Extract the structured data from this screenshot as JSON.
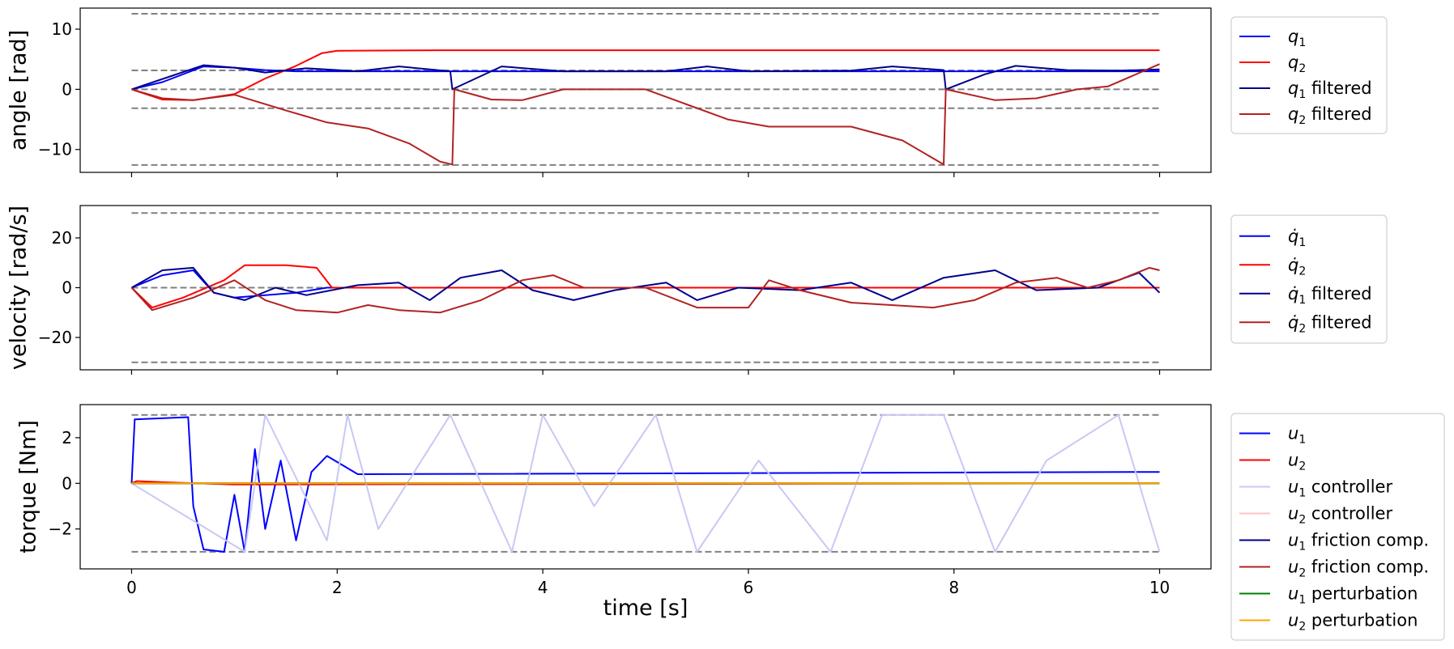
{
  "chart_data": [
    {
      "type": "line",
      "ylabel": "angle [rad]",
      "xlim": [
        -0.5,
        10.5
      ],
      "ylim": [
        -13.8,
        13.5
      ],
      "xticks": [
        "0",
        "2",
        "4",
        "6",
        "8",
        "10"
      ],
      "yticks": [
        10,
        0,
        -10
      ],
      "ytick_labels": [
        "10",
        "0",
        "−10"
      ],
      "limit_lines": [
        12.566,
        3.1416,
        0,
        -3.1416,
        -12.566
      ],
      "legend_position": "outside right",
      "series": [
        {
          "name": "q1",
          "legend_main": "q",
          "legend_sub": "1",
          "legend_suffix": "",
          "color": "#0000ff",
          "values": [
            [
              0,
              0
            ],
            [
              0.3,
              1.2
            ],
            [
              0.7,
              3.8
            ],
            [
              1,
              3.6
            ],
            [
              1.3,
              3.2
            ],
            [
              1.6,
              3.0
            ],
            [
              2,
              3.0
            ],
            [
              10,
              3.0
            ]
          ]
        },
        {
          "name": "q2",
          "legend_main": "q",
          "legend_sub": "2",
          "legend_suffix": "",
          "color": "#ff0000",
          "values": [
            [
              0,
              0
            ],
            [
              0.3,
              -1.7
            ],
            [
              0.6,
              -1.8
            ],
            [
              1,
              -0.8
            ],
            [
              1.3,
              1.8
            ],
            [
              1.6,
              3.9
            ],
            [
              1.85,
              6.0
            ],
            [
              2,
              6.4
            ],
            [
              3,
              6.5
            ],
            [
              10,
              6.5
            ]
          ]
        },
        {
          "name": "q1 filtered",
          "legend_main": "q",
          "legend_sub": "1",
          "legend_suffix": " filtered",
          "color": "#00008b",
          "values": [
            [
              0,
              0
            ],
            [
              0.35,
              2.0
            ],
            [
              0.7,
              4.0
            ],
            [
              1.0,
              3.6
            ],
            [
              1.3,
              2.8
            ],
            [
              1.7,
              3.5
            ],
            [
              2.2,
              3.0
            ],
            [
              2.6,
              3.8
            ],
            [
              3.1,
              3.0
            ],
            [
              3.12,
              0
            ],
            [
              3.6,
              3.8
            ],
            [
              4.2,
              3.0
            ],
            [
              5.2,
              3.0
            ],
            [
              5.6,
              3.8
            ],
            [
              6.0,
              3.0
            ],
            [
              7.0,
              3.1
            ],
            [
              7.4,
              3.8
            ],
            [
              7.9,
              3.2
            ],
            [
              7.92,
              0
            ],
            [
              8.3,
              2.5
            ],
            [
              8.6,
              3.9
            ],
            [
              9.1,
              3.2
            ],
            [
              9.6,
              3.1
            ],
            [
              10,
              3.3
            ]
          ]
        },
        {
          "name": "q2 filtered",
          "legend_main": "q",
          "legend_sub": "2",
          "legend_suffix": " filtered",
          "color": "#b22222",
          "values": [
            [
              0,
              0
            ],
            [
              0.3,
              -1.5
            ],
            [
              0.6,
              -1.8
            ],
            [
              1,
              -0.9
            ],
            [
              1.5,
              -3.5
            ],
            [
              1.9,
              -5.5
            ],
            [
              2.3,
              -6.5
            ],
            [
              2.7,
              -9
            ],
            [
              3,
              -12
            ],
            [
              3.12,
              -12.5
            ],
            [
              3.14,
              0
            ],
            [
              3.5,
              -1.7
            ],
            [
              3.8,
              -1.8
            ],
            [
              4.2,
              0
            ],
            [
              5,
              0
            ],
            [
              5.4,
              -2.5
            ],
            [
              5.8,
              -5
            ],
            [
              6.2,
              -6.2
            ],
            [
              7,
              -6.2
            ],
            [
              7.5,
              -8.5
            ],
            [
              7.9,
              -12.5
            ],
            [
              7.92,
              0
            ],
            [
              8.4,
              -1.8
            ],
            [
              8.8,
              -1.5
            ],
            [
              9.2,
              0
            ],
            [
              9.5,
              0.5
            ],
            [
              10,
              4.2
            ]
          ]
        }
      ]
    },
    {
      "type": "line",
      "ylabel": "velocity [rad/s]",
      "xlim": [
        -0.5,
        10.5
      ],
      "ylim": [
        -33,
        33
      ],
      "xticks": [
        "0",
        "2",
        "4",
        "6",
        "8",
        "10"
      ],
      "yticks": [
        20,
        0,
        -20
      ],
      "ytick_labels": [
        "20",
        "0",
        "−20"
      ],
      "limit_lines": [
        30,
        0,
        -30
      ],
      "legend_position": "outside right",
      "series": [
        {
          "name": "q1 dot",
          "legend_main": "q̇",
          "legend_sub": "1",
          "legend_suffix": "",
          "color": "#0000ff",
          "values": [
            [
              0,
              0
            ],
            [
              0.3,
              5
            ],
            [
              0.6,
              7
            ],
            [
              0.8,
              -2
            ],
            [
              1,
              -4
            ],
            [
              1.3,
              -3
            ],
            [
              1.6,
              -2
            ],
            [
              1.9,
              0
            ],
            [
              10,
              0
            ]
          ]
        },
        {
          "name": "q2 dot",
          "legend_main": "q̇",
          "legend_sub": "2",
          "legend_suffix": "",
          "color": "#ff0000",
          "values": [
            [
              0,
              0
            ],
            [
              0.2,
              -8
            ],
            [
              0.5,
              -4
            ],
            [
              0.9,
              3
            ],
            [
              1.1,
              9
            ],
            [
              1.5,
              9
            ],
            [
              1.8,
              8
            ],
            [
              1.95,
              0
            ],
            [
              10,
              0
            ]
          ]
        },
        {
          "name": "q1 dot filtered",
          "legend_main": "q̇",
          "legend_sub": "1",
          "legend_suffix": " filtered",
          "color": "#00008b",
          "values": [
            [
              0,
              0
            ],
            [
              0.3,
              7
            ],
            [
              0.6,
              8
            ],
            [
              0.8,
              -2
            ],
            [
              1.1,
              -5
            ],
            [
              1.4,
              0
            ],
            [
              1.7,
              -3
            ],
            [
              2.2,
              1
            ],
            [
              2.6,
              2
            ],
            [
              2.9,
              -5
            ],
            [
              3.2,
              4
            ],
            [
              3.6,
              7
            ],
            [
              3.9,
              -1
            ],
            [
              4.3,
              -5
            ],
            [
              4.7,
              -1
            ],
            [
              5.2,
              2
            ],
            [
              5.5,
              -5
            ],
            [
              5.9,
              0
            ],
            [
              6.5,
              -1
            ],
            [
              7.0,
              2
            ],
            [
              7.4,
              -5
            ],
            [
              7.9,
              4
            ],
            [
              8.4,
              7
            ],
            [
              8.8,
              -1
            ],
            [
              9.4,
              0
            ],
            [
              9.8,
              6
            ],
            [
              10,
              -2
            ]
          ]
        },
        {
          "name": "q2 dot filtered",
          "legend_main": "q̇",
          "legend_sub": "2",
          "legend_suffix": " filtered",
          "color": "#b22222",
          "values": [
            [
              0,
              0
            ],
            [
              0.2,
              -9
            ],
            [
              0.6,
              -4
            ],
            [
              1.0,
              3
            ],
            [
              1.3,
              -5
            ],
            [
              1.6,
              -9
            ],
            [
              2.0,
              -10
            ],
            [
              2.3,
              -7
            ],
            [
              2.6,
              -9
            ],
            [
              3.0,
              -10
            ],
            [
              3.4,
              -5
            ],
            [
              3.8,
              3
            ],
            [
              4.1,
              5
            ],
            [
              4.4,
              0
            ],
            [
              5.0,
              0
            ],
            [
              5.5,
              -8
            ],
            [
              6.0,
              -8
            ],
            [
              6.2,
              3
            ],
            [
              6.5,
              -1
            ],
            [
              7.0,
              -6
            ],
            [
              7.8,
              -8
            ],
            [
              8.2,
              -5
            ],
            [
              8.6,
              2
            ],
            [
              9.0,
              4
            ],
            [
              9.3,
              0
            ],
            [
              9.6,
              3
            ],
            [
              9.9,
              8
            ],
            [
              10,
              7
            ]
          ]
        }
      ]
    },
    {
      "type": "line",
      "ylabel": "torque [Nm]",
      "xlabel": "time [s]",
      "xlim": [
        -0.5,
        10.5
      ],
      "ylim": [
        -3.75,
        3.45
      ],
      "xticks": [
        "0",
        "2",
        "4",
        "6",
        "8",
        "10"
      ],
      "yticks": [
        2,
        0,
        -2
      ],
      "ytick_labels": [
        "2",
        "0",
        "−2"
      ],
      "limit_lines": [
        3,
        -3
      ],
      "legend_position": "outside right",
      "series": [
        {
          "name": "u1",
          "legend_main": "u",
          "legend_sub": "1",
          "legend_suffix": "",
          "color": "#0000ff",
          "values": [
            [
              0,
              0
            ],
            [
              0.03,
              2.8
            ],
            [
              0.55,
              2.9
            ],
            [
              0.6,
              -1
            ],
            [
              0.7,
              -2.9
            ],
            [
              0.9,
              -3
            ],
            [
              1.0,
              -0.5
            ],
            [
              1.1,
              -3
            ],
            [
              1.2,
              1.5
            ],
            [
              1.3,
              -2
            ],
            [
              1.45,
              1
            ],
            [
              1.6,
              -2.5
            ],
            [
              1.75,
              0.5
            ],
            [
              1.9,
              1.2
            ],
            [
              2.2,
              0.4
            ],
            [
              10,
              0.5
            ]
          ]
        },
        {
          "name": "u2",
          "legend_main": "u",
          "legend_sub": "2",
          "legend_suffix": "",
          "color": "#ff0000",
          "values": [
            [
              0,
              0
            ],
            [
              0.05,
              0.1
            ],
            [
              0.3,
              0.05
            ],
            [
              1.0,
              -0.05
            ],
            [
              10,
              0
            ]
          ]
        },
        {
          "name": "u1 controller",
          "legend_main": "u",
          "legend_sub": "1",
          "legend_suffix": " controller",
          "color": "#c8c8f5",
          "values": [
            [
              0,
              0
            ],
            [
              1.1,
              -3
            ],
            [
              1.3,
              3
            ],
            [
              1.9,
              -2.5
            ],
            [
              2.1,
              3
            ],
            [
              2.4,
              -2
            ],
            [
              3.1,
              3
            ],
            [
              3.7,
              -3
            ],
            [
              4.0,
              3
            ],
            [
              4.5,
              -1
            ],
            [
              5.1,
              3
            ],
            [
              5.5,
              -3
            ],
            [
              6.1,
              1
            ],
            [
              6.8,
              -3
            ],
            [
              7.3,
              3
            ],
            [
              7.9,
              3
            ],
            [
              8.4,
              -3
            ],
            [
              8.9,
              1
            ],
            [
              9.6,
              3
            ],
            [
              10,
              -3
            ]
          ]
        },
        {
          "name": "u2 controller",
          "legend_main": "u",
          "legend_sub": "2",
          "legend_suffix": " controller",
          "color": "#ffc0c0",
          "values": [
            [
              0,
              0
            ],
            [
              10,
              0
            ]
          ]
        },
        {
          "name": "u1 friction comp.",
          "legend_main": "u",
          "legend_sub": "1",
          "legend_suffix": " friction comp.",
          "color": "#00008b",
          "values": [
            [
              0,
              0
            ],
            [
              10,
              0
            ]
          ]
        },
        {
          "name": "u2 friction comp.",
          "legend_main": "u",
          "legend_sub": "2",
          "legend_suffix": " friction comp.",
          "color": "#b22222",
          "values": [
            [
              0,
              0
            ],
            [
              10,
              0
            ]
          ]
        },
        {
          "name": "u1 perturbation",
          "legend_main": "u",
          "legend_sub": "1",
          "legend_suffix": " perturbation",
          "color": "#008000",
          "values": [
            [
              0,
              0
            ],
            [
              10,
              0
            ]
          ]
        },
        {
          "name": "u2 perturbation",
          "legend_main": "u",
          "legend_sub": "2",
          "legend_suffix": " perturbation",
          "color": "#ffa500",
          "values": [
            [
              0,
              0
            ],
            [
              10,
              0
            ]
          ]
        }
      ]
    }
  ]
}
